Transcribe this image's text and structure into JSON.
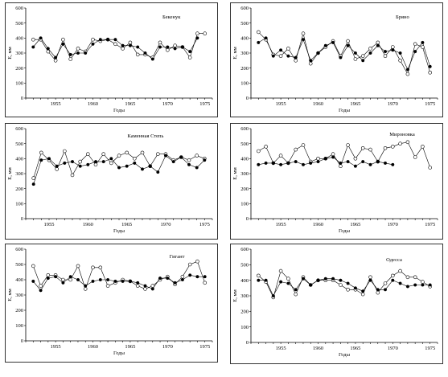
{
  "chart_data": [
    {
      "type": "line",
      "title": "Бекенук",
      "xlabel": "Годы",
      "ylabel": "E, мм",
      "ylim": [
        0,
        600
      ],
      "yticks": [
        0,
        100,
        200,
        300,
        400,
        500,
        600
      ],
      "xlim": [
        1951,
        1976
      ],
      "xticks": [
        1955,
        1960,
        1965,
        1970,
        1975
      ],
      "grid": false,
      "series": [
        {
          "marker": "open",
          "x": [
            1952,
            1953,
            1954,
            1955,
            1956,
            1957,
            1958,
            1959,
            1960,
            1961,
            1962,
            1963,
            1964,
            1965,
            1966,
            1967,
            1968,
            1969,
            1970,
            1971,
            1972,
            1973,
            1974,
            1975
          ],
          "values": [
            390,
            390,
            310,
            250,
            390,
            260,
            330,
            310,
            390,
            380,
            390,
            360,
            330,
            370,
            290,
            290,
            270,
            370,
            320,
            350,
            340,
            270,
            430,
            430
          ]
        },
        {
          "marker": "filled",
          "x": [
            1952,
            1953,
            1954,
            1955,
            1956,
            1957,
            1958,
            1959,
            1960,
            1961,
            1962,
            1963,
            1964,
            1965,
            1966,
            1967,
            1968,
            1969,
            1970,
            1971,
            1972,
            1973,
            1974
          ],
          "values": [
            340,
            400,
            330,
            270,
            360,
            290,
            300,
            300,
            360,
            390,
            390,
            390,
            350,
            350,
            340,
            300,
            260,
            340,
            340,
            330,
            340,
            310,
            400
          ]
        }
      ]
    },
    {
      "type": "line",
      "title": "Брянo",
      "xlabel": "Годы",
      "ylabel": "E, мм",
      "ylim": [
        0,
        600
      ],
      "yticks": [
        0,
        100,
        200,
        300,
        400,
        500,
        600
      ],
      "xlim": [
        1951,
        1976
      ],
      "xticks": [
        1955,
        1960,
        1965,
        1970,
        1975
      ],
      "grid": false,
      "series": [
        {
          "marker": "open",
          "x": [
            1952,
            1953,
            1954,
            1955,
            1956,
            1957,
            1958,
            1959,
            1960,
            1961,
            1962,
            1963,
            1964,
            1965,
            1966,
            1967,
            1968,
            1969,
            1970,
            1971,
            1972,
            1973,
            1974,
            1975
          ],
          "values": [
            440,
            390,
            290,
            280,
            330,
            250,
            430,
            230,
            300,
            340,
            380,
            280,
            380,
            260,
            280,
            330,
            370,
            280,
            340,
            250,
            160,
            360,
            340,
            170
          ]
        },
        {
          "marker": "filled",
          "x": [
            1952,
            1953,
            1954,
            1955,
            1956,
            1957,
            1958,
            1959,
            1960,
            1961,
            1962,
            1963,
            1964,
            1965,
            1966,
            1967,
            1968,
            1969,
            1970,
            1971,
            1972,
            1973,
            1974,
            1975
          ],
          "values": [
            370,
            400,
            280,
            320,
            280,
            270,
            390,
            250,
            300,
            350,
            370,
            270,
            350,
            300,
            250,
            300,
            350,
            310,
            320,
            300,
            190,
            310,
            370,
            210
          ]
        }
      ]
    },
    {
      "type": "line",
      "title": "Каменная Степь",
      "xlabel": "Годы",
      "ylabel": "E, мм",
      "ylim": [
        0,
        600
      ],
      "yticks": [
        0,
        100,
        200,
        300,
        400,
        500,
        600
      ],
      "xlim": [
        1952,
        1976
      ],
      "xticks": [
        1955,
        1960,
        1965,
        1970,
        1975
      ],
      "grid": false,
      "series": [
        {
          "marker": "open",
          "x": [
            1953,
            1954,
            1955,
            1956,
            1957,
            1958,
            1959,
            1960,
            1961,
            1962,
            1963,
            1964,
            1965,
            1966,
            1967,
            1968,
            1969,
            1970,
            1971,
            1972,
            1973,
            1974,
            1975
          ],
          "values": [
            270,
            440,
            390,
            330,
            450,
            290,
            380,
            430,
            360,
            430,
            370,
            420,
            440,
            400,
            440,
            350,
            430,
            430,
            390,
            410,
            390,
            420,
            400
          ]
        },
        {
          "marker": "filled",
          "x": [
            1953,
            1954,
            1955,
            1956,
            1957,
            1958,
            1959,
            1960,
            1961,
            1962,
            1963,
            1964,
            1965,
            1966,
            1967,
            1968,
            1969,
            1970,
            1971,
            1972,
            1973,
            1974,
            1975
          ],
          "values": [
            230,
            390,
            400,
            350,
            370,
            380,
            350,
            360,
            380,
            380,
            400,
            340,
            350,
            370,
            330,
            350,
            310,
            420,
            380,
            410,
            360,
            340,
            390
          ]
        }
      ]
    },
    {
      "type": "line",
      "title": "Мироновка",
      "xlabel": "Годы",
      "ylabel": "E, мм",
      "ylim": [
        0,
        600
      ],
      "yticks": [
        0,
        100,
        200,
        300,
        400,
        500,
        600
      ],
      "xlim": [
        1951,
        1976
      ],
      "xticks": [
        1955,
        1960,
        1965,
        1970,
        1975
      ],
      "grid": false,
      "series": [
        {
          "marker": "open",
          "x": [
            1952,
            1953,
            1954,
            1955,
            1956,
            1957,
            1958,
            1959,
            1960,
            1961,
            1962,
            1963,
            1964,
            1965,
            1966,
            1967,
            1968,
            1969,
            1970,
            1971,
            1972,
            1973,
            1974,
            1975
          ],
          "values": [
            450,
            480,
            370,
            420,
            370,
            460,
            490,
            380,
            400,
            400,
            430,
            350,
            490,
            400,
            470,
            460,
            380,
            470,
            480,
            500,
            510,
            410,
            480,
            340
          ]
        },
        {
          "marker": "filled",
          "x": [
            1952,
            1953,
            1954,
            1955,
            1956,
            1957,
            1958,
            1959,
            1960,
            1961,
            1962,
            1963,
            1964,
            1965,
            1966,
            1967,
            1968,
            1969,
            1970
          ],
          "values": [
            360,
            370,
            370,
            360,
            370,
            380,
            360,
            370,
            380,
            400,
            410,
            370,
            380,
            350,
            380,
            360,
            380,
            370,
            360
          ]
        }
      ]
    },
    {
      "type": "line",
      "title": "Гигант",
      "xlabel": "Годы",
      "ylabel": "E, мм",
      "ylim": [
        0,
        600
      ],
      "yticks": [
        0,
        100,
        200,
        300,
        400,
        500,
        600
      ],
      "xlim": [
        1951,
        1976
      ],
      "xticks": [
        1955,
        1960,
        1965,
        1970,
        1975
      ],
      "grid": false,
      "series": [
        {
          "marker": "open",
          "x": [
            1952,
            1953,
            1954,
            1955,
            1956,
            1957,
            1958,
            1959,
            1960,
            1961,
            1962,
            1963,
            1964,
            1965,
            1966,
            1967,
            1968,
            1969,
            1970,
            1971,
            1972,
            1973,
            1974,
            1975
          ],
          "values": [
            490,
            360,
            430,
            430,
            400,
            400,
            490,
            340,
            480,
            480,
            360,
            380,
            400,
            390,
            360,
            340,
            360,
            400,
            420,
            370,
            420,
            500,
            520,
            380
          ]
        },
        {
          "marker": "filled",
          "x": [
            1952,
            1953,
            1954,
            1955,
            1956,
            1957,
            1958,
            1959,
            1960,
            1961,
            1962,
            1963,
            1964,
            1965,
            1966,
            1967,
            1968,
            1969,
            1970,
            1971,
            1972,
            1973,
            1974,
            1975
          ],
          "values": [
            390,
            330,
            410,
            420,
            380,
            420,
            400,
            360,
            390,
            400,
            400,
            390,
            390,
            390,
            380,
            360,
            340,
            410,
            410,
            380,
            400,
            430,
            420,
            420
          ]
        }
      ]
    },
    {
      "type": "line",
      "title": "Одесса",
      "xlabel": "Годы",
      "ylabel": "E, мм",
      "ylim": [
        0,
        600
      ],
      "yticks": [
        0,
        100,
        200,
        300,
        400,
        500,
        600
      ],
      "xlim": [
        1951,
        1976
      ],
      "xticks": [
        1955,
        1960,
        1965,
        1970,
        1975
      ],
      "grid": false,
      "series": [
        {
          "marker": "open",
          "x": [
            1952,
            1953,
            1954,
            1955,
            1956,
            1957,
            1958,
            1959,
            1960,
            1961,
            1962,
            1963,
            1964,
            1965,
            1966,
            1967,
            1968,
            1969,
            1970,
            1971,
            1972,
            1973,
            1974,
            1975
          ],
          "values": [
            430,
            390,
            290,
            460,
            410,
            310,
            420,
            370,
            400,
            400,
            400,
            370,
            340,
            340,
            310,
            420,
            320,
            380,
            430,
            460,
            420,
            420,
            390,
            360
          ]
        },
        {
          "marker": "filled",
          "x": [
            1952,
            1953,
            1954,
            1955,
            1956,
            1957,
            1958,
            1959,
            1960,
            1961,
            1962,
            1963,
            1964,
            1965,
            1966,
            1967,
            1968,
            1969,
            1970,
            1971,
            1972,
            1973,
            1974,
            1975
          ],
          "values": [
            400,
            400,
            300,
            390,
            380,
            340,
            410,
            370,
            400,
            410,
            410,
            400,
            380,
            350,
            330,
            400,
            340,
            340,
            400,
            380,
            360,
            370,
            370,
            370
          ]
        }
      ]
    }
  ]
}
